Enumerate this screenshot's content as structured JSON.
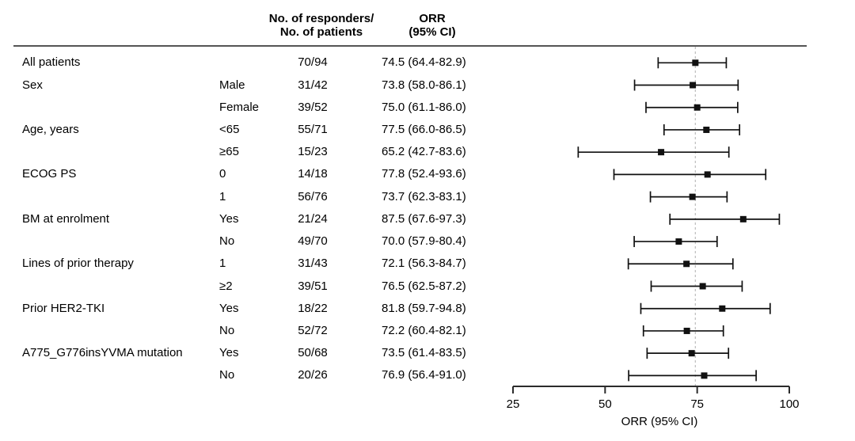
{
  "table": {
    "col_headers": {
      "responders": "No. of responders/\nNo. of patients",
      "orr": "ORR\n(95% CI)"
    }
  },
  "chart_data": {
    "type": "forest",
    "title": "",
    "xlabel": "ORR (95% CI)",
    "xlim": [
      25,
      100
    ],
    "x_ticks": [
      25,
      50,
      75,
      100
    ],
    "ref_line": 74.5,
    "rows": [
      {
        "category": "All patients",
        "subgroup": "",
        "ratio": "70/94",
        "orr": "74.5 (64.4-82.9)",
        "est": 74.5,
        "lo": 64.4,
        "hi": 82.9
      },
      {
        "category": "Sex",
        "subgroup": "Male",
        "ratio": "31/42",
        "orr": "73.8 (58.0-86.1)",
        "est": 73.8,
        "lo": 58.0,
        "hi": 86.1
      },
      {
        "category": "",
        "subgroup": "Female",
        "ratio": "39/52",
        "orr": "75.0 (61.1-86.0)",
        "est": 75.0,
        "lo": 61.1,
        "hi": 86.0
      },
      {
        "category": "Age, years",
        "subgroup": "<65",
        "ratio": "55/71",
        "orr": "77.5 (66.0-86.5)",
        "est": 77.5,
        "lo": 66.0,
        "hi": 86.5
      },
      {
        "category": "",
        "subgroup": "≥65",
        "ratio": "15/23",
        "orr": "65.2 (42.7-83.6)",
        "est": 65.2,
        "lo": 42.7,
        "hi": 83.6
      },
      {
        "category": "ECOG PS",
        "subgroup": "0",
        "ratio": "14/18",
        "orr": "77.8 (52.4-93.6)",
        "est": 77.8,
        "lo": 52.4,
        "hi": 93.6
      },
      {
        "category": "",
        "subgroup": "1",
        "ratio": "56/76",
        "orr": "73.7 (62.3-83.1)",
        "est": 73.7,
        "lo": 62.3,
        "hi": 83.1
      },
      {
        "category": "BM at enrolment",
        "subgroup": "Yes",
        "ratio": "21/24",
        "orr": "87.5 (67.6-97.3)",
        "est": 87.5,
        "lo": 67.6,
        "hi": 97.3
      },
      {
        "category": "",
        "subgroup": "No",
        "ratio": "49/70",
        "orr": "70.0 (57.9-80.4)",
        "est": 70.0,
        "lo": 57.9,
        "hi": 80.4
      },
      {
        "category": "Lines of prior therapy",
        "subgroup": "1",
        "ratio": "31/43",
        "orr": "72.1 (56.3-84.7)",
        "est": 72.1,
        "lo": 56.3,
        "hi": 84.7
      },
      {
        "category": "",
        "subgroup": "≥2",
        "ratio": "39/51",
        "orr": "76.5 (62.5-87.2)",
        "est": 76.5,
        "lo": 62.5,
        "hi": 87.2
      },
      {
        "category": "Prior HER2-TKI",
        "subgroup": "Yes",
        "ratio": "18/22",
        "orr": "81.8 (59.7-94.8)",
        "est": 81.8,
        "lo": 59.7,
        "hi": 94.8
      },
      {
        "category": "",
        "subgroup": "No",
        "ratio": "52/72",
        "orr": "72.2 (60.4-82.1)",
        "est": 72.2,
        "lo": 60.4,
        "hi": 82.1
      },
      {
        "category": "A775_G776insYVMA mutation",
        "subgroup": "Yes",
        "ratio": "50/68",
        "orr": "73.5 (61.4-83.5)",
        "est": 73.5,
        "lo": 61.4,
        "hi": 83.5
      },
      {
        "category": "",
        "subgroup": "No",
        "ratio": "20/26",
        "orr": "76.9 (56.4-91.0)",
        "est": 76.9,
        "lo": 56.4,
        "hi": 91.0
      }
    ]
  },
  "colors": {
    "text": "#000000",
    "bar": "#111111",
    "axis": "#2b2b2b",
    "ref_line": "#c2c2c2",
    "header_rule": "#555555"
  }
}
